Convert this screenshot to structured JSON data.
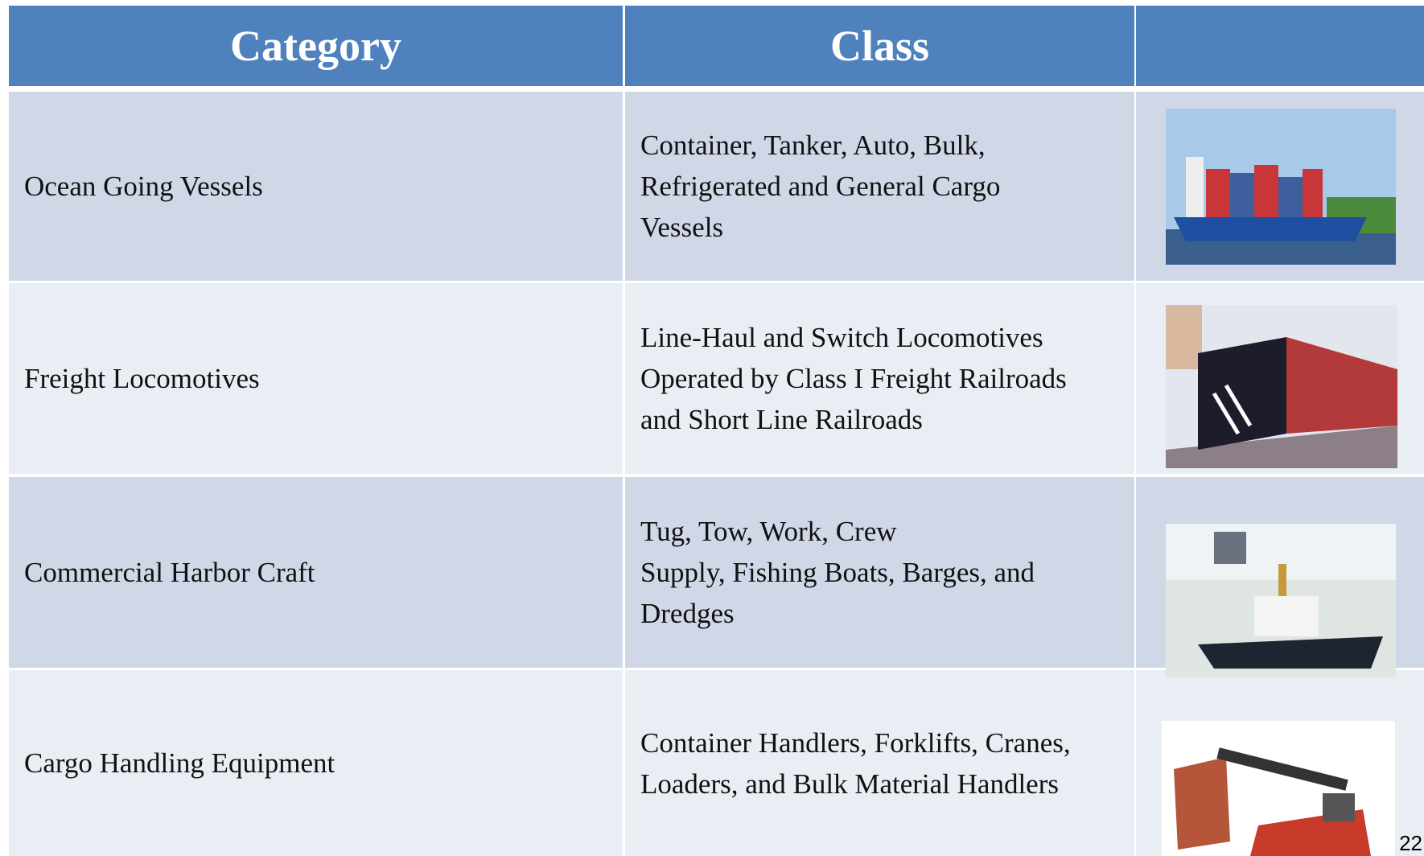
{
  "table": {
    "header": [
      "Category",
      "Class"
    ],
    "rows": [
      {
        "category": "Ocean Going Vessels",
        "class": [
          "Container, Tanker, Auto, Bulk,",
          "Refrigerated and General Cargo",
          "Vessels"
        ]
      },
      {
        "category": "Freight Locomotives",
        "class": [
          "Line-Haul and Switch Locomotives",
          "Operated by Class I Freight Railroads",
          "and Short Line Railroads"
        ]
      },
      {
        "category": "Commercial Harbor Craft",
        "class": [
          "Tug, Tow, Work, Crew",
          "Supply, Fishing Boats, Barges, and",
          "Dredges"
        ]
      },
      {
        "category": "Cargo Handling  Equipment",
        "class": [
          "Container Handlers, Forklifts, Cranes,",
          "Loaders, and Bulk Material Handlers"
        ]
      }
    ]
  },
  "page_number": "22"
}
